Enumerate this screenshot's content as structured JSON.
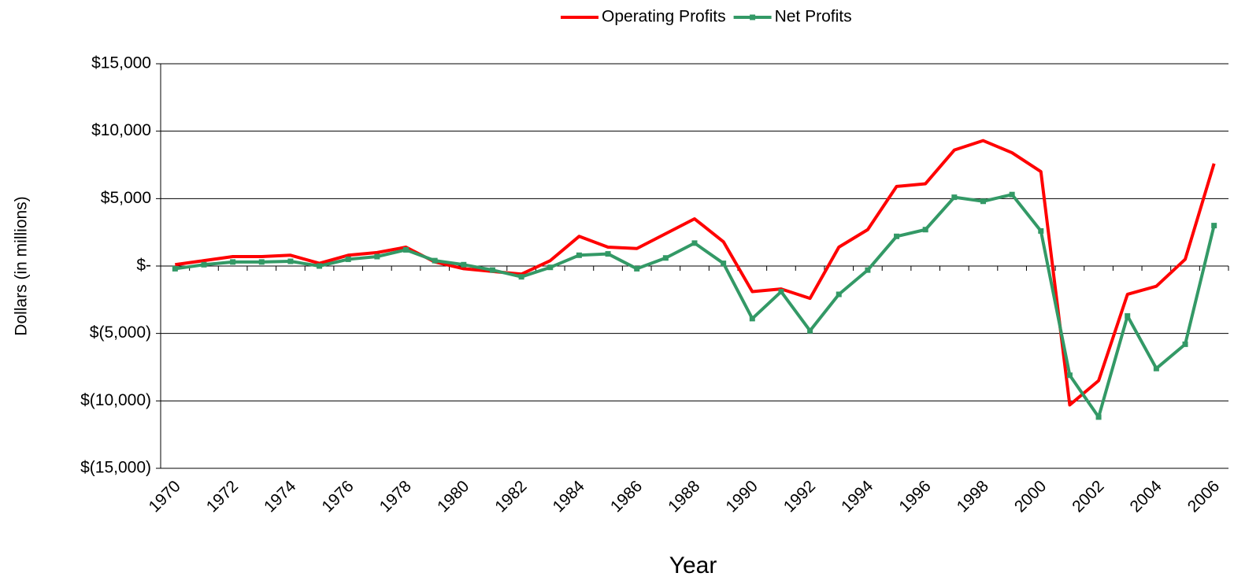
{
  "chart_data": {
    "type": "line",
    "x_label": "Year",
    "y_label": "Dollars (in millions)",
    "categories": [
      "1970",
      null,
      "1972",
      null,
      "1974",
      null,
      "1976",
      null,
      "1978",
      null,
      "1980",
      null,
      "1982",
      null,
      "1984",
      null,
      "1986",
      null,
      "1988",
      null,
      "1990",
      null,
      "1992",
      null,
      "1994",
      null,
      "1996",
      null,
      "1998",
      null,
      "2000",
      null,
      "2002",
      null,
      "2004",
      null,
      "2006"
    ],
    "series": [
      {
        "name": "Operating Profits",
        "color": "#ff0000",
        "marker": false,
        "values": [
          100,
          400,
          700,
          700,
          800,
          200,
          800,
          1000,
          1400,
          300,
          -200,
          -400,
          -600,
          400,
          2200,
          1400,
          1300,
          2400,
          3500,
          1800,
          -1900,
          -1700,
          -2400,
          1400,
          2700,
          5900,
          6100,
          8600,
          9300,
          8400,
          7000,
          -10300,
          -8500,
          -2100,
          -1500,
          500,
          7600
        ]
      },
      {
        "name": "Net Profits",
        "color": "#339966",
        "marker": true,
        "values": [
          -200,
          100,
          300,
          300,
          350,
          0,
          500,
          700,
          1200,
          400,
          100,
          -300,
          -800,
          -100,
          800,
          900,
          -200,
          600,
          1700,
          200,
          -3900,
          -1900,
          -4800,
          -2100,
          -300,
          2200,
          2700,
          5100,
          4800,
          5300,
          2600,
          -8100,
          -11200,
          -3700,
          -7600,
          -5800,
          3000
        ]
      }
    ],
    "ylim": [
      -15000,
      15000
    ],
    "yticks": [
      {
        "value": -15000,
        "label": "$(15,000)"
      },
      {
        "value": -10000,
        "label": "$(10,000)"
      },
      {
        "value": -5000,
        "label": "$(5,000)"
      },
      {
        "value": 0,
        "label": "$-"
      },
      {
        "value": 5000,
        "label": "$5,000"
      },
      {
        "value": 10000,
        "label": "$10,000"
      },
      {
        "value": 15000,
        "label": "$15,000"
      }
    ],
    "grid": true,
    "legend": "top"
  }
}
